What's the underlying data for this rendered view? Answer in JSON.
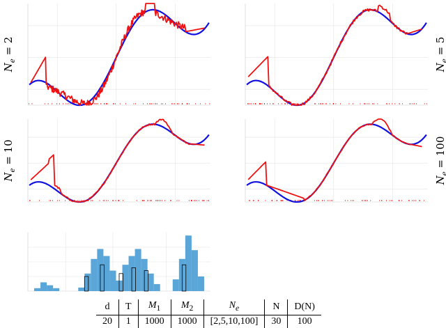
{
  "chart_data": [
    {
      "type": "line",
      "panel": "top-left",
      "series": [
        {
          "color": "#1010e0"
        },
        {
          "color": "#ee1111"
        }
      ],
      "grid": true,
      "row_label": {
        "symbol": "N",
        "sub": "e",
        "value": "2"
      }
    },
    {
      "type": "line",
      "panel": "top-right",
      "series": [
        {
          "color": "#1010e0"
        },
        {
          "color": "#ee1111"
        }
      ],
      "grid": true,
      "row_label": {
        "symbol": "N",
        "sub": "e",
        "value": "5"
      }
    },
    {
      "type": "line",
      "panel": "middle-left",
      "series": [
        {
          "color": "#1010e0"
        },
        {
          "color": "#ee1111"
        }
      ],
      "grid": true,
      "row_label": {
        "symbol": "N",
        "sub": "e",
        "value": "10"
      }
    },
    {
      "type": "line",
      "panel": "middle-right",
      "series": [
        {
          "color": "#1010e0"
        },
        {
          "color": "#ee1111"
        }
      ],
      "grid": true,
      "row_label": {
        "symbol": "N",
        "sub": "e",
        "value": "100"
      }
    },
    {
      "type": "bar",
      "panel": "histogram",
      "bar_color": "#5aa6d9",
      "edge_color": "#000000",
      "bars": [
        [
          -3.0,
          0.05
        ],
        [
          -2.8,
          0.15
        ],
        [
          -2.6,
          0.1
        ],
        [
          -2.4,
          0.05
        ],
        [
          -1.6,
          0.06
        ],
        [
          -1.4,
          0.3
        ],
        [
          -1.2,
          0.55
        ],
        [
          -1.0,
          0.72
        ],
        [
          -0.8,
          0.6
        ],
        [
          -0.6,
          0.35
        ],
        [
          -0.4,
          0.18
        ],
        [
          -0.2,
          0.45
        ],
        [
          0.0,
          0.6
        ],
        [
          0.2,
          0.72
        ],
        [
          0.4,
          0.55
        ],
        [
          0.6,
          0.3
        ],
        [
          0.8,
          0.12
        ],
        [
          1.4,
          0.2
        ],
        [
          1.6,
          0.55
        ],
        [
          1.8,
          0.95
        ],
        [
          2.0,
          0.7
        ],
        [
          2.2,
          0.25
        ]
      ],
      "outlined_bars": [
        [
          -1.4,
          0.25
        ],
        [
          -0.9,
          0.45
        ],
        [
          -0.3,
          0.3
        ],
        [
          0.1,
          0.4
        ],
        [
          0.5,
          0.35
        ],
        [
          1.7,
          0.45
        ]
      ],
      "grid": true
    }
  ],
  "table": {
    "headers": [
      {
        "main": "d",
        "sub": ""
      },
      {
        "main": "T",
        "sub": ""
      },
      {
        "main": "M",
        "sub": "1"
      },
      {
        "main": "M",
        "sub": "2"
      },
      {
        "main": "N",
        "sub": "e"
      },
      {
        "main": "N",
        "sub": ""
      },
      {
        "main": "D(N)",
        "sub": ""
      }
    ],
    "values": [
      "20",
      "1",
      "1000",
      "1000",
      "[2,5,10,100]",
      "30",
      "100"
    ]
  }
}
